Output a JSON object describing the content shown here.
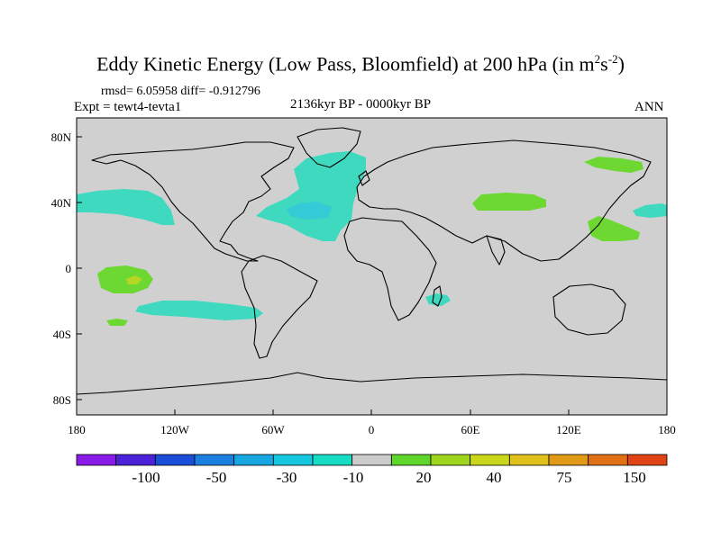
{
  "title": {
    "main": "Eddy Kinetic Energy (Low Pass, Bloomfield) at 200 hPa (in m",
    "exp1": "2",
    "mid": "s",
    "exp2": "-2",
    "close": ")"
  },
  "stats": "rmsd= 6.05958 diff= -0.912796",
  "experiment": "Expt = tewt4-tevta1",
  "period": "2136kyr BP - 0000kyr BP",
  "season": "ANN",
  "map": {
    "land_color": "#d0d0d0",
    "lon_ticks": [
      "180",
      "120W",
      "60W",
      "0",
      "60E",
      "120E",
      "180"
    ],
    "lat_ticks": [
      "80N",
      "40N",
      "0",
      "40S",
      "80S"
    ]
  },
  "colorbar": {
    "colors": [
      "#8a1be6",
      "#4b22d8",
      "#1a4ed8",
      "#1a7fe0",
      "#16a6e0",
      "#16c7e0",
      "#16dcc4",
      "#cccccc",
      "#5fd62a",
      "#9ed61e",
      "#c9d61a",
      "#e0c01a",
      "#e09a16",
      "#e07016",
      "#e04414"
    ],
    "labels": [
      "-100",
      "-50",
      "-30",
      "-10",
      "20",
      "40",
      "75",
      "150"
    ],
    "neg_light": "#3fd9c0",
    "neg_mid": "#34cbd6",
    "pos_light": "#6dd832",
    "pos_mid": "#b6d624"
  }
}
